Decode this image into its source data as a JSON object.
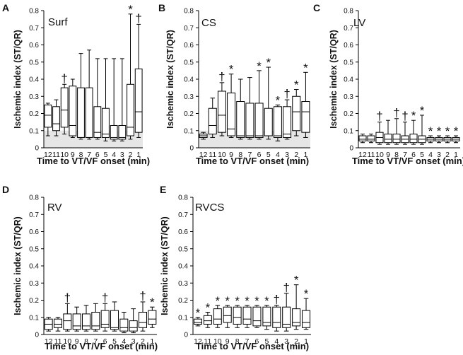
{
  "figure": {
    "x_label": "Time to VT/VF onset (min)",
    "y_label": "Ischemic index (ST/QR)"
  },
  "chart_data": [
    {
      "letter": "A",
      "type": "box",
      "title": "Surf",
      "shaded_band": [
        0,
        0.1
      ],
      "xlabel": "Time to VT/VF onset (min)",
      "ylabel": "Ischemic index (ST/QR)",
      "ylim": [
        0,
        0.8
      ],
      "yticks": [
        "0",
        "0.1",
        "0.2",
        "0.3",
        "0.4",
        "0.5",
        "0.6",
        "0.7",
        "0.8"
      ],
      "categories": [
        "12",
        "11",
        "10",
        "9",
        "8",
        "7",
        "6",
        "5",
        "4",
        "3",
        "2",
        "1"
      ],
      "boxes": [
        {
          "min": 0.07,
          "q1": 0.12,
          "median": 0.19,
          "q3": 0.25,
          "max": 0.26,
          "mark": ""
        },
        {
          "min": 0.07,
          "q1": 0.1,
          "median": 0.14,
          "q3": 0.24,
          "max": 0.28,
          "mark": ""
        },
        {
          "min": 0.08,
          "q1": 0.12,
          "median": 0.22,
          "q3": 0.35,
          "max": 0.37,
          "mark": "†"
        },
        {
          "min": 0.06,
          "q1": 0.07,
          "median": 0.13,
          "q3": 0.36,
          "max": 0.4,
          "mark": ""
        },
        {
          "min": 0.05,
          "q1": 0.06,
          "median": 0.06,
          "q3": 0.35,
          "max": 0.55,
          "mark": ""
        },
        {
          "min": 0.05,
          "q1": 0.06,
          "median": 0.06,
          "q3": 0.35,
          "max": 0.57,
          "mark": ""
        },
        {
          "min": 0.05,
          "q1": 0.06,
          "median": 0.09,
          "q3": 0.24,
          "max": 0.52,
          "mark": ""
        },
        {
          "min": 0.04,
          "q1": 0.06,
          "median": 0.08,
          "q3": 0.23,
          "max": 0.52,
          "mark": ""
        },
        {
          "min": 0.04,
          "q1": 0.05,
          "median": 0.06,
          "q3": 0.13,
          "max": 0.52,
          "mark": ""
        },
        {
          "min": 0.04,
          "q1": 0.05,
          "median": 0.06,
          "q3": 0.13,
          "max": 0.52,
          "mark": ""
        },
        {
          "min": 0.05,
          "q1": 0.07,
          "median": 0.12,
          "q3": 0.37,
          "max": 0.78,
          "mark": "*"
        },
        {
          "min": 0.06,
          "q1": 0.09,
          "median": 0.21,
          "q3": 0.46,
          "max": 0.72,
          "mark": "†"
        }
      ]
    },
    {
      "letter": "B",
      "type": "box",
      "title": "CS",
      "shaded_band": [
        0,
        0.1
      ],
      "xlabel": "Time to VT/VF onset (min)",
      "ylabel": "Ischemic index (ST/QR)",
      "ylim": [
        0,
        0.8
      ],
      "yticks": [
        "0",
        "0.1",
        "0.2",
        "0.3",
        "0.4",
        "0.5",
        "0.6",
        "0.7",
        "0.8"
      ],
      "categories": [
        "12",
        "11",
        "10",
        "9",
        "8",
        "7",
        "6",
        "5",
        "4",
        "3",
        "2",
        "1"
      ],
      "boxes": [
        {
          "min": 0.05,
          "q1": 0.06,
          "median": 0.07,
          "q3": 0.08,
          "max": 0.09,
          "mark": ""
        },
        {
          "min": 0.06,
          "q1": 0.08,
          "median": 0.13,
          "q3": 0.23,
          "max": 0.29,
          "mark": ""
        },
        {
          "min": 0.07,
          "q1": 0.09,
          "median": 0.19,
          "q3": 0.33,
          "max": 0.38,
          "mark": "†"
        },
        {
          "min": 0.06,
          "q1": 0.07,
          "median": 0.11,
          "q3": 0.32,
          "max": 0.43,
          "mark": "*"
        },
        {
          "min": 0.05,
          "q1": 0.06,
          "median": 0.07,
          "q3": 0.27,
          "max": 0.4,
          "mark": ""
        },
        {
          "min": 0.05,
          "q1": 0.06,
          "median": 0.07,
          "q3": 0.26,
          "max": 0.41,
          "mark": ""
        },
        {
          "min": 0.05,
          "q1": 0.06,
          "median": 0.07,
          "q3": 0.26,
          "max": 0.45,
          "mark": "*"
        },
        {
          "min": 0.05,
          "q1": 0.07,
          "median": 0.07,
          "q3": 0.23,
          "max": 0.47,
          "mark": "*"
        },
        {
          "min": 0.04,
          "q1": 0.06,
          "median": 0.07,
          "q3": 0.24,
          "max": 0.25,
          "mark": "*"
        },
        {
          "min": 0.05,
          "q1": 0.06,
          "median": 0.08,
          "q3": 0.24,
          "max": 0.28,
          "mark": "†"
        },
        {
          "min": 0.07,
          "q1": 0.1,
          "median": 0.21,
          "q3": 0.3,
          "max": 0.34,
          "mark": "*"
        },
        {
          "min": 0.06,
          "q1": 0.09,
          "median": 0.21,
          "q3": 0.27,
          "max": 0.44,
          "mark": "*"
        }
      ]
    },
    {
      "letter": "C",
      "type": "box",
      "title": "LV",
      "shaded_band": null,
      "xlabel": "Time to VT/VF onset (min)",
      "ylabel": "Ischemic index (ST/QR)",
      "ylim": [
        0,
        0.8
      ],
      "yticks": [
        "0",
        "0.1",
        "0.2",
        "0.3",
        "0.4",
        "0.5",
        "0.6",
        "0.7",
        "0.8"
      ],
      "categories": [
        "12",
        "11",
        "10",
        "9",
        "8",
        "7",
        "6",
        "5",
        "4",
        "3",
        "2",
        "1"
      ],
      "boxes": [
        {
          "min": 0.03,
          "q1": 0.04,
          "median": 0.05,
          "q3": 0.07,
          "max": 0.08,
          "mark": ""
        },
        {
          "min": 0.03,
          "q1": 0.04,
          "median": 0.05,
          "q3": 0.07,
          "max": 0.08,
          "mark": ""
        },
        {
          "min": 0.02,
          "q1": 0.03,
          "median": 0.06,
          "q3": 0.09,
          "max": 0.15,
          "mark": "†"
        },
        {
          "min": 0.02,
          "q1": 0.03,
          "median": 0.05,
          "q3": 0.08,
          "max": 0.16,
          "mark": ""
        },
        {
          "min": 0.02,
          "q1": 0.03,
          "median": 0.05,
          "q3": 0.08,
          "max": 0.17,
          "mark": "†"
        },
        {
          "min": 0.02,
          "q1": 0.03,
          "median": 0.05,
          "q3": 0.07,
          "max": 0.15,
          "mark": "†"
        },
        {
          "min": 0.02,
          "q1": 0.03,
          "median": 0.05,
          "q3": 0.08,
          "max": 0.16,
          "mark": "*"
        },
        {
          "min": 0.02,
          "q1": 0.03,
          "median": 0.05,
          "q3": 0.07,
          "max": 0.19,
          "mark": "*"
        },
        {
          "min": 0.03,
          "q1": 0.04,
          "median": 0.05,
          "q3": 0.06,
          "max": 0.07,
          "mark": "*"
        },
        {
          "min": 0.03,
          "q1": 0.04,
          "median": 0.05,
          "q3": 0.06,
          "max": 0.07,
          "mark": "*"
        },
        {
          "min": 0.03,
          "q1": 0.04,
          "median": 0.05,
          "q3": 0.06,
          "max": 0.07,
          "mark": "*"
        },
        {
          "min": 0.03,
          "q1": 0.04,
          "median": 0.05,
          "q3": 0.06,
          "max": 0.07,
          "mark": "*"
        }
      ]
    },
    {
      "letter": "D",
      "type": "box",
      "title": "RV",
      "shaded_band": null,
      "xlabel": "Time to VT/VF onset (min)",
      "ylabel": "Ischemic index (ST/QR)",
      "ylim": [
        0,
        0.8
      ],
      "yticks": [
        "0",
        "0.1",
        "0.2",
        "0.3",
        "0.4",
        "0.5",
        "0.6",
        "0.7",
        "0.8"
      ],
      "categories": [
        "12",
        "11",
        "10",
        "9",
        "8",
        "7",
        "6",
        "5",
        "4",
        "3",
        "2",
        "1"
      ],
      "boxes": [
        {
          "min": 0.02,
          "q1": 0.03,
          "median": 0.06,
          "q3": 0.09,
          "max": 0.1,
          "mark": ""
        },
        {
          "min": 0.02,
          "q1": 0.04,
          "median": 0.06,
          "q3": 0.09,
          "max": 0.1,
          "mark": ""
        },
        {
          "min": 0.02,
          "q1": 0.03,
          "median": 0.08,
          "q3": 0.12,
          "max": 0.18,
          "mark": "†"
        },
        {
          "min": 0.02,
          "q1": 0.03,
          "median": 0.05,
          "q3": 0.12,
          "max": 0.16,
          "mark": ""
        },
        {
          "min": 0.02,
          "q1": 0.03,
          "median": 0.05,
          "q3": 0.12,
          "max": 0.17,
          "mark": ""
        },
        {
          "min": 0.02,
          "q1": 0.03,
          "median": 0.05,
          "q3": 0.13,
          "max": 0.18,
          "mark": ""
        },
        {
          "min": 0.02,
          "q1": 0.04,
          "median": 0.06,
          "q3": 0.14,
          "max": 0.18,
          "mark": "†"
        },
        {
          "min": 0.02,
          "q1": 0.03,
          "median": 0.04,
          "q3": 0.14,
          "max": 0.19,
          "mark": ""
        },
        {
          "min": 0.01,
          "q1": 0.02,
          "median": 0.04,
          "q3": 0.09,
          "max": 0.13,
          "mark": ""
        },
        {
          "min": 0.01,
          "q1": 0.02,
          "median": 0.04,
          "q3": 0.08,
          "max": 0.15,
          "mark": ""
        },
        {
          "min": 0.02,
          "q1": 0.04,
          "median": 0.07,
          "q3": 0.13,
          "max": 0.19,
          "mark": "†"
        },
        {
          "min": 0.04,
          "q1": 0.06,
          "median": 0.09,
          "q3": 0.14,
          "max": 0.16,
          "mark": "*"
        }
      ]
    },
    {
      "letter": "E",
      "type": "box",
      "title": "RVCS",
      "shaded_band": null,
      "xlabel": "Time to VT/VF onset (min)",
      "ylabel": "Ischemic index (ST/QR)",
      "ylim": [
        0,
        0.8
      ],
      "yticks": [
        "0",
        "0.1",
        "0.2",
        "0.3",
        "0.4",
        "0.5",
        "0.6",
        "0.7",
        "0.8"
      ],
      "categories": [
        "12",
        "11",
        "10",
        "9",
        "8",
        "7",
        "6",
        "5",
        "4",
        "3",
        "2",
        "1"
      ],
      "boxes": [
        {
          "min": 0.05,
          "q1": 0.06,
          "median": 0.07,
          "q3": 0.09,
          "max": 0.1,
          "mark": "*"
        },
        {
          "min": 0.04,
          "q1": 0.06,
          "median": 0.08,
          "q3": 0.11,
          "max": 0.13,
          "mark": "*"
        },
        {
          "min": 0.04,
          "q1": 0.06,
          "median": 0.09,
          "q3": 0.15,
          "max": 0.17,
          "mark": "*"
        },
        {
          "min": 0.04,
          "q1": 0.07,
          "median": 0.11,
          "q3": 0.16,
          "max": 0.17,
          "mark": "*"
        },
        {
          "min": 0.04,
          "q1": 0.06,
          "median": 0.1,
          "q3": 0.16,
          "max": 0.17,
          "mark": "*"
        },
        {
          "min": 0.04,
          "q1": 0.06,
          "median": 0.09,
          "q3": 0.16,
          "max": 0.17,
          "mark": "*"
        },
        {
          "min": 0.04,
          "q1": 0.05,
          "median": 0.08,
          "q3": 0.16,
          "max": 0.17,
          "mark": "*"
        },
        {
          "min": 0.03,
          "q1": 0.05,
          "median": 0.07,
          "q3": 0.16,
          "max": 0.17,
          "mark": "*"
        },
        {
          "min": 0.02,
          "q1": 0.04,
          "median": 0.07,
          "q3": 0.16,
          "max": 0.17,
          "mark": "†"
        },
        {
          "min": 0.02,
          "q1": 0.04,
          "median": 0.06,
          "q3": 0.16,
          "max": 0.24,
          "mark": "†"
        },
        {
          "min": 0.03,
          "q1": 0.05,
          "median": 0.07,
          "q3": 0.15,
          "max": 0.29,
          "mark": "*"
        },
        {
          "min": 0.03,
          "q1": 0.04,
          "median": 0.07,
          "q3": 0.14,
          "max": 0.21,
          "mark": "*"
        }
      ]
    }
  ]
}
